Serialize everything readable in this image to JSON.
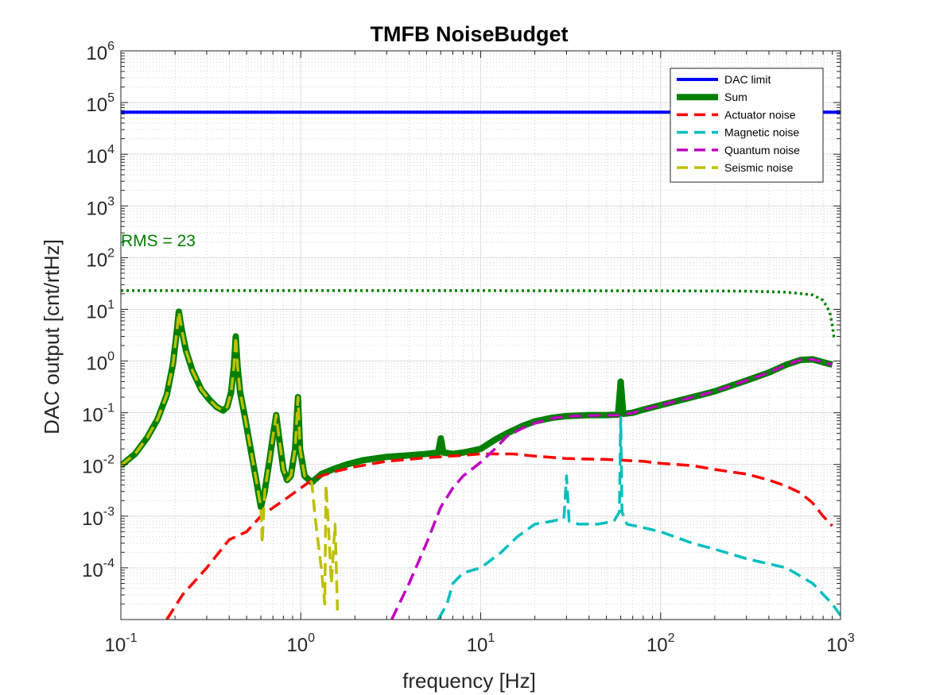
{
  "chart_data": {
    "type": "line",
    "title": "TMFB NoiseBudget",
    "xlabel": "frequency [Hz]",
    "ylabel": "DAC output [cnt/rtHz]",
    "xscale": "log",
    "yscale": "log",
    "xlim": [
      0.1,
      1000
    ],
    "ylim": [
      1e-05,
      1000000
    ],
    "grid": true,
    "minor_grid": true,
    "legend_position": "top-right",
    "x_ticks": [
      {
        "value": 0.1,
        "base": "10",
        "exp": "-1"
      },
      {
        "value": 1,
        "base": "10",
        "exp": "0"
      },
      {
        "value": 10,
        "base": "10",
        "exp": "1"
      },
      {
        "value": 100,
        "base": "10",
        "exp": "2"
      },
      {
        "value": 1000,
        "base": "10",
        "exp": "3"
      }
    ],
    "y_ticks": [
      {
        "value": 0.0001,
        "base": "10",
        "exp": "-4"
      },
      {
        "value": 0.001,
        "base": "10",
        "exp": "-3"
      },
      {
        "value": 0.01,
        "base": "10",
        "exp": "-2"
      },
      {
        "value": 0.1,
        "base": "10",
        "exp": "-1"
      },
      {
        "value": 1,
        "base": "10",
        "exp": "0"
      },
      {
        "value": 10,
        "base": "10",
        "exp": "1"
      },
      {
        "value": 100,
        "base": "10",
        "exp": "2"
      },
      {
        "value": 1000,
        "base": "10",
        "exp": "3"
      },
      {
        "value": 10000,
        "base": "10",
        "exp": "4"
      },
      {
        "value": 100000,
        "base": "10",
        "exp": "5"
      },
      {
        "value": 1000000,
        "base": "10",
        "exp": "6"
      }
    ],
    "annotation": {
      "text": "RMS = 23",
      "x": 0.1,
      "y": 220,
      "color": "#008000"
    },
    "series": [
      {
        "name": "DAC limit",
        "color": "#0000ff",
        "style": "solid",
        "width": 4,
        "legend": true,
        "points": [
          [
            0.1,
            65000
          ],
          [
            1000,
            65000
          ]
        ]
      },
      {
        "name": "Sum",
        "color": "#008000",
        "style": "solid",
        "width": 8,
        "legend": true,
        "points": [
          [
            0.1,
            0.0095
          ],
          [
            0.12,
            0.016
          ],
          [
            0.14,
            0.033
          ],
          [
            0.16,
            0.075
          ],
          [
            0.18,
            0.22
          ],
          [
            0.195,
            0.9
          ],
          [
            0.205,
            4.0
          ],
          [
            0.21,
            9.0
          ],
          [
            0.218,
            4.0
          ],
          [
            0.23,
            1.6
          ],
          [
            0.25,
            0.65
          ],
          [
            0.28,
            0.28
          ],
          [
            0.31,
            0.18
          ],
          [
            0.34,
            0.13
          ],
          [
            0.37,
            0.11
          ],
          [
            0.39,
            0.13
          ],
          [
            0.41,
            0.25
          ],
          [
            0.425,
            0.8
          ],
          [
            0.435,
            3.0
          ],
          [
            0.445,
            0.8
          ],
          [
            0.46,
            0.25
          ],
          [
            0.49,
            0.08
          ],
          [
            0.52,
            0.025
          ],
          [
            0.56,
            0.006
          ],
          [
            0.6,
            0.0015
          ],
          [
            0.63,
            0.003
          ],
          [
            0.67,
            0.012
          ],
          [
            0.7,
            0.035
          ],
          [
            0.73,
            0.09
          ],
          [
            0.76,
            0.03
          ],
          [
            0.8,
            0.008
          ],
          [
            0.84,
            0.005
          ],
          [
            0.88,
            0.006
          ],
          [
            0.93,
            0.02
          ],
          [
            0.965,
            0.2
          ],
          [
            0.99,
            0.02
          ],
          [
            1.05,
            0.006
          ],
          [
            1.15,
            0.0045
          ],
          [
            1.3,
            0.0065
          ],
          [
            1.5,
            0.008
          ],
          [
            1.8,
            0.01
          ],
          [
            2.2,
            0.012
          ],
          [
            3,
            0.014
          ],
          [
            4,
            0.015
          ],
          [
            5,
            0.016
          ],
          [
            5.8,
            0.017
          ],
          [
            6.0,
            0.032
          ],
          [
            6.2,
            0.017
          ],
          [
            7,
            0.016
          ],
          [
            8,
            0.017
          ],
          [
            10,
            0.02
          ],
          [
            12,
            0.03
          ],
          [
            14,
            0.04
          ],
          [
            17,
            0.055
          ],
          [
            20,
            0.068
          ],
          [
            25,
            0.08
          ],
          [
            30,
            0.086
          ],
          [
            40,
            0.09
          ],
          [
            50,
            0.09
          ],
          [
            58,
            0.092
          ],
          [
            60,
            0.4
          ],
          [
            62,
            0.095
          ],
          [
            70,
            0.1
          ],
          [
            80,
            0.115
          ],
          [
            100,
            0.14
          ],
          [
            150,
            0.2
          ],
          [
            200,
            0.26
          ],
          [
            300,
            0.42
          ],
          [
            400,
            0.6
          ],
          [
            500,
            0.85
          ],
          [
            600,
            1.05
          ],
          [
            700,
            1.08
          ],
          [
            800,
            0.95
          ],
          [
            900,
            0.85
          ]
        ]
      },
      {
        "name": "Actuator noise",
        "color": "#ff0000",
        "style": "dashed",
        "width": 3.5,
        "legend": true,
        "points": [
          [
            0.18,
            1e-05
          ],
          [
            0.22,
            3e-05
          ],
          [
            0.3,
            0.0001
          ],
          [
            0.4,
            0.00035
          ],
          [
            0.5,
            0.0005
          ],
          [
            0.6,
            0.001
          ],
          [
            0.8,
            0.002
          ],
          [
            1.0,
            0.0035
          ],
          [
            1.2,
            0.0055
          ],
          [
            1.6,
            0.0075
          ],
          [
            2,
            0.009
          ],
          [
            3,
            0.0115
          ],
          [
            5,
            0.0135
          ],
          [
            8,
            0.015
          ],
          [
            10,
            0.016
          ],
          [
            15,
            0.016
          ],
          [
            20,
            0.0145
          ],
          [
            30,
            0.013
          ],
          [
            50,
            0.0125
          ],
          [
            80,
            0.0115
          ],
          [
            100,
            0.0105
          ],
          [
            150,
            0.0095
          ],
          [
            200,
            0.008
          ],
          [
            300,
            0.0065
          ],
          [
            400,
            0.005
          ],
          [
            500,
            0.0038
          ],
          [
            600,
            0.0028
          ],
          [
            700,
            0.0018
          ],
          [
            800,
            0.001
          ],
          [
            900,
            0.00065
          ]
        ]
      },
      {
        "name": "Magnetic noise",
        "color": "#00bfbf",
        "style": "dashed",
        "width": 3.5,
        "legend": true,
        "points": [
          [
            5.8,
            1e-05
          ],
          [
            6.5,
            2e-05
          ],
          [
            7,
            5e-05
          ],
          [
            8,
            8e-05
          ],
          [
            10,
            0.0001
          ],
          [
            13,
            0.0002
          ],
          [
            16,
            0.0004
          ],
          [
            20,
            0.0007
          ],
          [
            25,
            0.0008
          ],
          [
            29,
            0.0009
          ],
          [
            30,
            0.006
          ],
          [
            31,
            0.0008
          ],
          [
            35,
            0.0007
          ],
          [
            45,
            0.0007
          ],
          [
            55,
            0.0008
          ],
          [
            59,
            0.0012
          ],
          [
            60,
            0.08
          ],
          [
            61,
            0.0012
          ],
          [
            65,
            0.0007
          ],
          [
            80,
            0.0006
          ],
          [
            100,
            0.0005
          ],
          [
            150,
            0.0003
          ],
          [
            200,
            0.00023
          ],
          [
            300,
            0.00015
          ],
          [
            500,
            0.0001
          ],
          [
            700,
            5e-05
          ],
          [
            900,
            2e-05
          ],
          [
            1000,
            1.2e-05
          ]
        ]
      },
      {
        "name": "Quantum noise",
        "color": "#bf00bf",
        "style": "dashed",
        "width": 3.5,
        "legend": true,
        "points": [
          [
            3.2,
            1e-05
          ],
          [
            4,
            5e-05
          ],
          [
            5,
            0.0003
          ],
          [
            6,
            0.0015
          ],
          [
            7,
            0.0035
          ],
          [
            8,
            0.006
          ],
          [
            10,
            0.011
          ],
          [
            12,
            0.02
          ],
          [
            14,
            0.035
          ],
          [
            17,
            0.05
          ],
          [
            20,
            0.063
          ],
          [
            25,
            0.078
          ],
          [
            30,
            0.085
          ],
          [
            40,
            0.088
          ],
          [
            60,
            0.09
          ],
          [
            70,
            0.1
          ],
          [
            80,
            0.115
          ],
          [
            100,
            0.14
          ],
          [
            150,
            0.2
          ],
          [
            200,
            0.26
          ],
          [
            300,
            0.42
          ],
          [
            400,
            0.6
          ],
          [
            500,
            0.85
          ],
          [
            600,
            1.05
          ],
          [
            700,
            1.08
          ],
          [
            800,
            0.95
          ],
          [
            900,
            0.85
          ]
        ]
      },
      {
        "name": "Seismic noise",
        "color": "#bfbf00",
        "style": "dashed",
        "width": 3.5,
        "legend": true,
        "points": [
          [
            0.1,
            0.0095
          ],
          [
            0.12,
            0.016
          ],
          [
            0.14,
            0.033
          ],
          [
            0.16,
            0.075
          ],
          [
            0.18,
            0.22
          ],
          [
            0.195,
            0.9
          ],
          [
            0.205,
            4.0
          ],
          [
            0.21,
            9.0
          ],
          [
            0.218,
            4.0
          ],
          [
            0.23,
            1.6
          ],
          [
            0.25,
            0.65
          ],
          [
            0.28,
            0.28
          ],
          [
            0.31,
            0.18
          ],
          [
            0.34,
            0.13
          ],
          [
            0.37,
            0.11
          ],
          [
            0.39,
            0.13
          ],
          [
            0.41,
            0.25
          ],
          [
            0.425,
            0.8
          ],
          [
            0.435,
            3.0
          ],
          [
            0.445,
            0.8
          ],
          [
            0.46,
            0.25
          ],
          [
            0.49,
            0.08
          ],
          [
            0.52,
            0.025
          ],
          [
            0.56,
            0.006
          ],
          [
            0.6,
            0.0015
          ],
          [
            0.61,
            0.0003
          ],
          [
            0.63,
            0.003
          ],
          [
            0.67,
            0.012
          ],
          [
            0.7,
            0.035
          ],
          [
            0.73,
            0.09
          ],
          [
            0.76,
            0.03
          ],
          [
            0.8,
            0.008
          ],
          [
            0.84,
            0.005
          ],
          [
            0.88,
            0.006
          ],
          [
            0.93,
            0.02
          ],
          [
            0.965,
            0.2
          ],
          [
            0.99,
            0.02
          ],
          [
            1.05,
            0.006
          ],
          [
            1.15,
            0.0045
          ],
          [
            1.2,
            0.001
          ],
          [
            1.25,
            0.0003
          ],
          [
            1.3,
            0.0001
          ],
          [
            1.36,
            2e-05
          ],
          [
            1.38,
            0.004
          ],
          [
            1.42,
            0.0008
          ],
          [
            1.48,
            5e-05
          ],
          [
            1.55,
            0.0007
          ],
          [
            1.6,
            1.5e-05
          ]
        ]
      },
      {
        "name": "RMS",
        "color": "#008000",
        "style": "dotted",
        "width": 3.5,
        "legend": false,
        "points": [
          [
            0.1,
            23
          ],
          [
            10,
            23
          ],
          [
            100,
            22.8
          ],
          [
            300,
            22.5
          ],
          [
            500,
            21.5
          ],
          [
            700,
            19
          ],
          [
            800,
            15
          ],
          [
            870,
            9
          ],
          [
            900,
            5
          ],
          [
            920,
            2.8
          ]
        ]
      }
    ]
  }
}
